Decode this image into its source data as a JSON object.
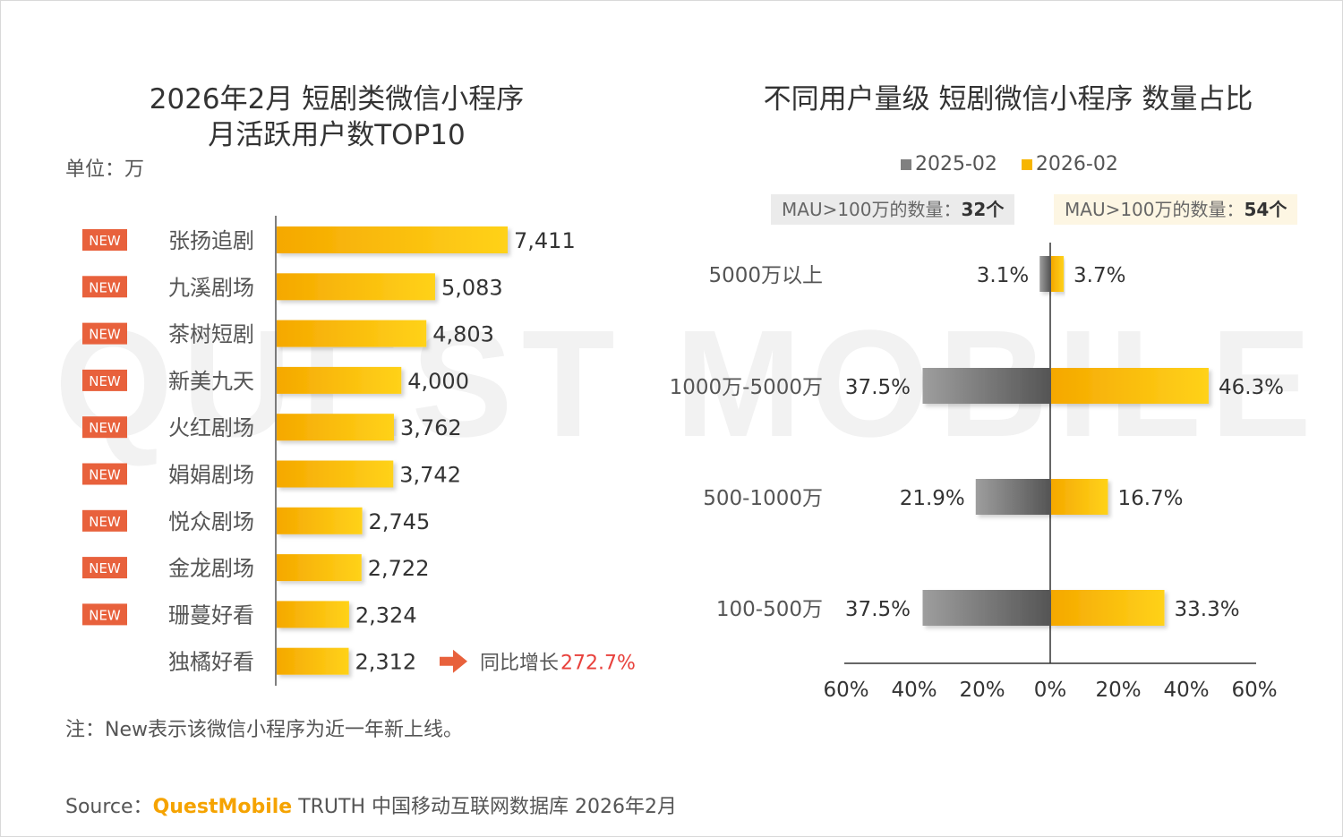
{
  "left_chart": {
    "title_line1": "2026年2月 短剧类微信小程序",
    "title_line2": "月活跃用户数TOP10",
    "unit": "单位：万",
    "new_badge": "NEW",
    "growth_prefix": "同比增长",
    "growth_value": "272.7%",
    "note": "注：New表示该微信小程序为近一年新上线。"
  },
  "right_chart": {
    "title": "不同用户量级 短剧微信小程序 数量占比",
    "mau_left_label": "MAU>100万的数量：",
    "mau_left_value": "32个",
    "mau_right_label": "MAU>100万的数量：",
    "mau_right_value": "54个"
  },
  "source": {
    "prefix": "Source：",
    "brand": "QuestMobile",
    "rest": " TRUTH 中国移动互联网数据库 2026年2月"
  },
  "watermark": "QUEST MOBILE",
  "colors": {
    "gold": "#f7b500",
    "gold_light": "#ffd633",
    "gray": "#808080",
    "gray_dark": "#595959",
    "badge": "#e8613c",
    "growth": "#e8413c"
  },
  "chart_data": [
    {
      "type": "bar",
      "orientation": "horizontal",
      "title": "2026年2月 短剧类微信小程序 月活跃用户数TOP10",
      "unit": "万",
      "categories": [
        "张扬追剧",
        "九溪剧场",
        "茶树短剧",
        "新美九天",
        "火红剧场",
        "娟娟剧场",
        "悦众剧场",
        "金龙剧场",
        "珊蔓好看",
        "独橘好看"
      ],
      "values": [
        7411,
        5083,
        4803,
        4000,
        3762,
        3742,
        2745,
        2722,
        2324,
        2312
      ],
      "value_labels": [
        "7,411",
        "5,083",
        "4,803",
        "4,000",
        "3,762",
        "3,742",
        "2,745",
        "2,722",
        "2,324",
        "2,312"
      ],
      "is_new": [
        true,
        true,
        true,
        true,
        true,
        true,
        true,
        true,
        true,
        false
      ]
    },
    {
      "type": "bar",
      "orientation": "horizontal-diverging",
      "title": "不同用户量级 短剧微信小程序 数量占比",
      "categories": [
        "5000万以上",
        "1000万-5000万",
        "500-1000万",
        "100-500万"
      ],
      "series": [
        {
          "name": "2025-02",
          "values": [
            3.1,
            37.5,
            21.9,
            37.5
          ],
          "labels": [
            "3.1%",
            "37.5%",
            "21.9%",
            "37.5%"
          ],
          "color": "#808080"
        },
        {
          "name": "2026-02",
          "values": [
            3.7,
            46.3,
            16.7,
            33.3
          ],
          "labels": [
            "3.7%",
            "46.3%",
            "16.7%",
            "33.3%"
          ],
          "color": "#f7b500"
        }
      ],
      "xlim": [
        -60,
        60
      ],
      "x_tick_labels": [
        "60%",
        "40%",
        "20%",
        "0%",
        "20%",
        "40%",
        "60%"
      ],
      "legend": "top"
    }
  ]
}
